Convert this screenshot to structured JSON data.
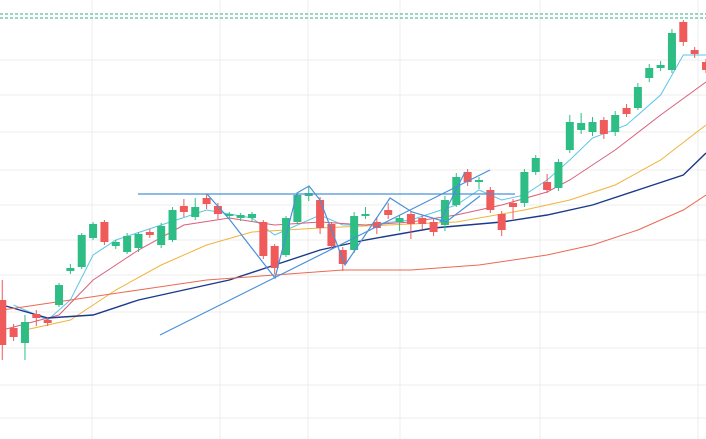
{
  "chart_data": {
    "type": "candlestick",
    "x": [
      0,
      1,
      2,
      3,
      4,
      5,
      6,
      7,
      8,
      9,
      10,
      11,
      12,
      13,
      14,
      15,
      16,
      17,
      18,
      19,
      20,
      21,
      22,
      23,
      24,
      25,
      26,
      27,
      28,
      29,
      30,
      31,
      32,
      33,
      34,
      35,
      36,
      37,
      38,
      39,
      40,
      41,
      42,
      43,
      44,
      45,
      46,
      47,
      48,
      49,
      50,
      51,
      52,
      53,
      54,
      55,
      56,
      57,
      58,
      59,
      60,
      61,
      62
    ],
    "open": [
      139,
      111,
      96,
      125,
      119,
      134,
      168,
      172,
      201,
      217,
      193,
      187,
      191,
      207,
      194,
      199,
      233,
      222,
      241,
      233,
      223,
      221,
      221,
      217,
      193,
      184,
      217,
      243,
      239,
      215,
      189,
      189,
      223,
      217,
      229,
      217,
      225,
      221,
      217,
      214,
      234,
      267,
      257,
      249,
      225,
      236,
      236,
      267,
      257,
      251,
      289,
      309,
      307,
      319,
      307,
      331,
      331,
      361,
      371,
      369,
      417,
      389,
      377
    ],
    "high": [
      159,
      115,
      124,
      129,
      122,
      156,
      175,
      206,
      217,
      219,
      199,
      206,
      207,
      210,
      216,
      232,
      240,
      241,
      245,
      236,
      227,
      226,
      227,
      219,
      195,
      223,
      246,
      252,
      242,
      217,
      192,
      227,
      232,
      222,
      236,
      224,
      228,
      224,
      220,
      243,
      266,
      270,
      262,
      252,
      228,
      240,
      270,
      284,
      265,
      280,
      324,
      326,
      322,
      322,
      328,
      335,
      356,
      375,
      378,
      410,
      419,
      392,
      380
    ],
    "low": [
      79,
      98,
      79,
      113,
      113,
      132,
      165,
      170,
      199,
      194,
      190,
      185,
      187,
      201,
      191,
      197,
      222,
      219,
      230,
      220,
      220,
      218,
      217,
      180,
      165,
      182,
      215,
      238,
      205,
      190,
      168,
      186,
      220,
      205,
      220,
      208,
      200,
      210,
      203,
      208,
      232,
      253,
      250,
      226,
      203,
      220,
      232,
      264,
      246,
      248,
      286,
      305,
      303,
      300,
      303,
      322,
      329,
      357,
      368,
      366,
      393,
      381,
      366
    ],
    "close": [
      94,
      102,
      117,
      121,
      116,
      154,
      171,
      204,
      215,
      197,
      197,
      203,
      205,
      204,
      213,
      229,
      227,
      232,
      235,
      225,
      225,
      224,
      225,
      183,
      171,
      221,
      244,
      246,
      211,
      193,
      175,
      223,
      225,
      211,
      224,
      221,
      215,
      215,
      207,
      239,
      262,
      257,
      259,
      229,
      209,
      232,
      267,
      281,
      249,
      277,
      317,
      316,
      317,
      305,
      324,
      325,
      352,
      371,
      374,
      406,
      397,
      385,
      369
    ],
    "up_color": "#2ebd85",
    "down_color": "#ef5a5a",
    "xlim": [
      -0.2,
      62
    ],
    "ylim": [
      0,
      439
    ],
    "series": [
      {
        "color": "#5cc6e6",
        "x": [
          1,
          4,
          6,
          8,
          10,
          14,
          18,
          22,
          24,
          26,
          28,
          30,
          32,
          36,
          40,
          42,
          44,
          46,
          48,
          50,
          52,
          55,
          58,
          60,
          62
        ],
        "values": [
          134,
          119,
          139,
          184,
          199,
          214,
          229,
          221,
          204,
          214,
          224,
          214,
          214,
          219,
          234,
          249,
          239,
          244,
          259,
          279,
          301,
          314,
          344,
          384,
          384
        ]
      },
      {
        "color": "#d8607c",
        "x": [
          0,
          5,
          8,
          12,
          16,
          20,
          24,
          28,
          32,
          36,
          40,
          44,
          48,
          50,
          54,
          58,
          62
        ],
        "values": [
          109,
          124,
          159,
          189,
          214,
          221,
          214,
          217,
          214,
          217,
          224,
          234,
          247,
          259,
          289,
          324,
          357
        ]
      },
      {
        "color": "#f0b43c",
        "x": [
          2,
          6,
          10,
          14,
          18,
          22,
          28,
          34,
          40,
          46,
          50,
          54,
          58,
          62
        ],
        "values": [
          109,
          119,
          149,
          174,
          194,
          207,
          211,
          214,
          217,
          229,
          239,
          254,
          279,
          314
        ]
      },
      {
        "color": "#1b3a8c",
        "x": [
          0,
          4,
          8,
          12,
          16,
          20,
          24,
          28,
          32,
          38,
          44,
          48,
          52,
          56,
          60,
          62
        ],
        "values": [
          134,
          121,
          124,
          139,
          149,
          159,
          174,
          189,
          199,
          211,
          217,
          224,
          234,
          249,
          264,
          286
        ]
      },
      {
        "color": "#ea6a52",
        "x": [
          0,
          6,
          12,
          18,
          24,
          30,
          36,
          42,
          48,
          52,
          56,
          60,
          62
        ],
        "values": [
          129,
          139,
          149,
          159,
          164,
          169,
          169,
          174,
          184,
          194,
          209,
          229,
          244
        ]
      }
    ]
  }
}
